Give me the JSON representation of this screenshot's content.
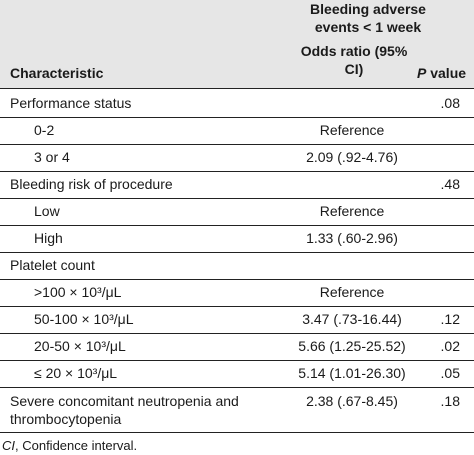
{
  "table": {
    "group_header": "Bleeding adverse events < 1 week",
    "columns": {
      "characteristic": "Characteristic",
      "odds_ratio": "Odds ratio (95% CI)",
      "p_value_italic": "P",
      "p_value_rest": " value"
    },
    "rows": [
      {
        "type": "category",
        "label": "Performance status",
        "or": "",
        "p": ".08"
      },
      {
        "type": "sub",
        "label": "0-2",
        "or": "Reference",
        "p": ""
      },
      {
        "type": "sub",
        "label": "3 or 4",
        "or": "2.09 (.92-4.76)",
        "p": ""
      },
      {
        "type": "category",
        "label": "Bleeding risk of procedure",
        "or": "",
        "p": ".48"
      },
      {
        "type": "sub",
        "label": "Low",
        "or": "Reference",
        "p": ""
      },
      {
        "type": "sub",
        "label": "High",
        "or": "1.33 (.60-2.96)",
        "p": ""
      },
      {
        "type": "category",
        "label": "Platelet count",
        "or": "",
        "p": ""
      },
      {
        "type": "sub",
        "label": ">100 × 10³/μL",
        "or": "Reference",
        "p": ""
      },
      {
        "type": "sub",
        "label": "50-100 × 10³/μL",
        "or": "3.47 (.73-16.44)",
        "p": ".12"
      },
      {
        "type": "sub",
        "label": "20-50 × 10³/μL",
        "or": "5.66 (1.25-25.52)",
        "p": ".02"
      },
      {
        "type": "sub",
        "label": "≤ 20 × 10³/μL",
        "or": "5.14 (1.01-26.30)",
        "p": ".05"
      },
      {
        "type": "category",
        "label": "Severe concomitant neutropenia and thrombocytopenia",
        "or": "2.38 (.67-8.45)",
        "p": ".18"
      }
    ]
  },
  "footnote": {
    "abbr": "CI",
    "text": ", Confidence interval."
  }
}
